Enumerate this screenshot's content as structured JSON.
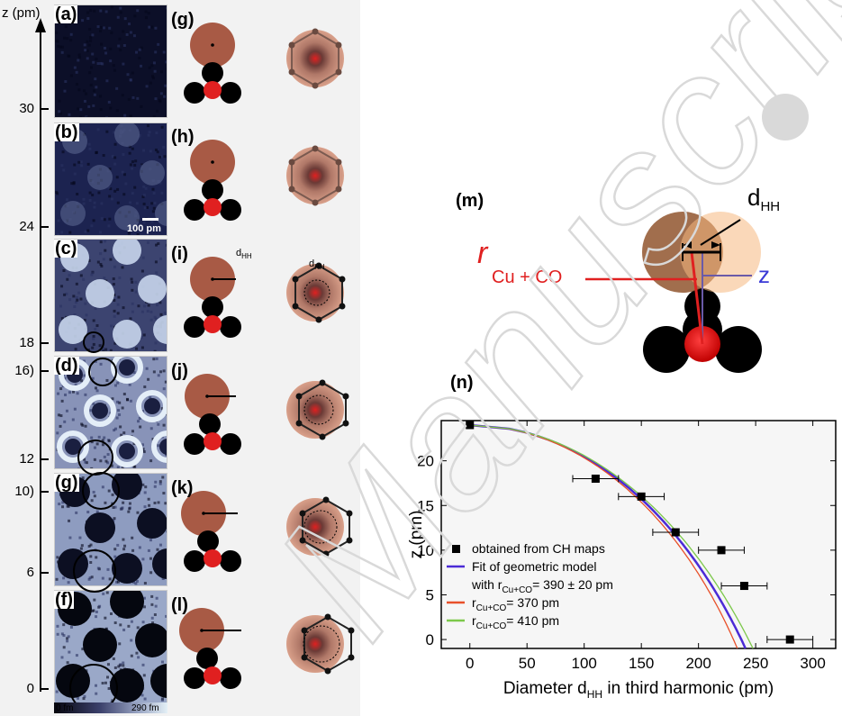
{
  "left_panel": {
    "z_axis_label": "z (pm)",
    "z_ticks": [
      "30",
      "24",
      "18",
      "16)",
      "12",
      "10)",
      "6",
      "0"
    ],
    "panels": [
      {
        "id": "a",
        "label": "(a)",
        "style": "noise"
      },
      {
        "id": "b",
        "label": "(b)",
        "style": "faint"
      },
      {
        "id": "c",
        "label": "(c)",
        "style": "bright-spots"
      },
      {
        "id": "d",
        "label": "(d)",
        "style": "rings"
      },
      {
        "id": "g2",
        "label": "(g)",
        "style": "dark-holes"
      },
      {
        "id": "f",
        "label": "(f)",
        "style": "dark-holes-strong"
      }
    ],
    "scale_bar_label": "100 pm",
    "colorbar": {
      "min_label": "0 fm",
      "max_label": "290 fm"
    }
  },
  "model_panels": [
    {
      "label": "(g)"
    },
    {
      "label": "(h)"
    },
    {
      "label": "(i)"
    },
    {
      "label": "(j)"
    },
    {
      "label": "(k)"
    },
    {
      "label": "(l)"
    }
  ],
  "dhh_label": "d",
  "dhh_sub": "HH",
  "panel_m": {
    "label": "(m)",
    "dhh_text": "d",
    "dhh_sub": "HH",
    "r_text": "r",
    "r_sub": "Cu + CO",
    "z_text": "z"
  },
  "chart_data": {
    "type": "scatter",
    "label": "(n)",
    "xlabel": "Diameter d",
    "xlabel_sub": "HH",
    "xlabel_tail": " in third harmonic (pm)",
    "ylabel": "z (pm)",
    "xlim": [
      -25,
      320
    ],
    "ylim": [
      -1,
      24.5
    ],
    "xticks": [
      0,
      50,
      100,
      150,
      200,
      250,
      300
    ],
    "yticks": [
      0,
      5,
      10,
      15,
      20
    ],
    "points": [
      {
        "x": 0,
        "y": 24,
        "xerr": 0
      },
      {
        "x": 110,
        "y": 18,
        "xerr": 20
      },
      {
        "x": 150,
        "y": 16,
        "xerr": 20
      },
      {
        "x": 180,
        "y": 12,
        "xerr": 20
      },
      {
        "x": 220,
        "y": 10,
        "xerr": 20
      },
      {
        "x": 240,
        "y": 6,
        "xerr": 20
      },
      {
        "x": 280,
        "y": 0,
        "xerr": 20
      }
    ],
    "series": [
      {
        "name": "Fit of geometric model",
        "r": 390,
        "color": "#4b2bd6"
      },
      {
        "name": "r",
        "r": 370,
        "color": "#e8502a"
      },
      {
        "name": "r",
        "r": 410,
        "color": "#7cc84a"
      }
    ],
    "legend": [
      {
        "marker": "square",
        "text": "obtained from CH maps"
      },
      {
        "marker": "line",
        "color": "#4b2bd6",
        "text": "Fit of geometric model"
      },
      {
        "marker": "none",
        "text": "with r",
        "sub": "Cu+CO",
        "tail": "= 390 ± 20 pm"
      },
      {
        "marker": "line",
        "color": "#e8502a",
        "text": "r",
        "sub": "Cu+CO",
        "tail": "= 370 pm"
      },
      {
        "marker": "line",
        "color": "#7cc84a",
        "text": "r",
        "sub": "Cu+CO",
        "tail": "= 410 pm"
      }
    ],
    "legend_position": "bottom-left",
    "grid": false
  },
  "watermark": "Manuscript"
}
